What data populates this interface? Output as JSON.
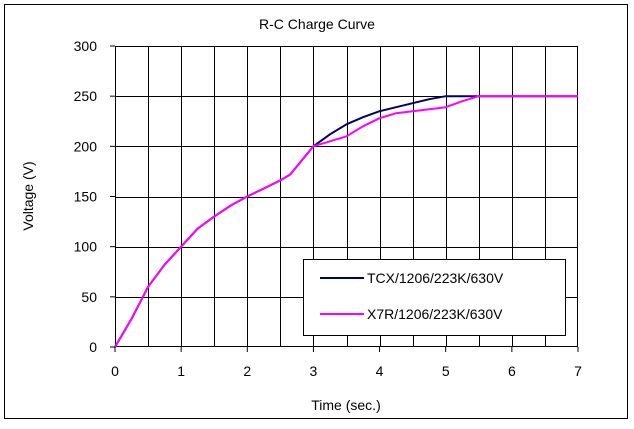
{
  "chart_data": {
    "type": "line",
    "title": "R-C Charge Curve",
    "xlabel": "Time (sec.)",
    "ylabel": "Voltage (V)",
    "xlim": [
      0,
      7
    ],
    "ylim": [
      0,
      300
    ],
    "x_ticks": [
      "0",
      "1",
      "2",
      "3",
      "4",
      "5",
      "6",
      "7"
    ],
    "y_ticks": [
      "0",
      "50",
      "100",
      "150",
      "200",
      "250",
      "300"
    ],
    "grid": true,
    "legend_position": "bottom-right",
    "series": [
      {
        "name": "TCX/1206/223K/630V",
        "color": "#000066",
        "points": [
          [
            0,
            0
          ],
          [
            0.25,
            28
          ],
          [
            0.5,
            60
          ],
          [
            0.75,
            82
          ],
          [
            1,
            100
          ],
          [
            1.25,
            118
          ],
          [
            1.5,
            130
          ],
          [
            1.75,
            141
          ],
          [
            2,
            150
          ],
          [
            2.25,
            158
          ],
          [
            2.5,
            166
          ],
          [
            2.65,
            172
          ],
          [
            2.85,
            188
          ],
          [
            3,
            200
          ],
          [
            3.25,
            212
          ],
          [
            3.5,
            222
          ],
          [
            3.75,
            229
          ],
          [
            4,
            235
          ],
          [
            4.25,
            239
          ],
          [
            4.5,
            243
          ],
          [
            4.75,
            247
          ],
          [
            5,
            250
          ],
          [
            5.25,
            250
          ],
          [
            5.5,
            250
          ],
          [
            6,
            250
          ],
          [
            6.5,
            250
          ],
          [
            7,
            250
          ]
        ]
      },
      {
        "name": "X7R/1206/223K/630V",
        "color": "#ff00ff",
        "points": [
          [
            0,
            0
          ],
          [
            0.25,
            28
          ],
          [
            0.5,
            60
          ],
          [
            0.75,
            82
          ],
          [
            1,
            100
          ],
          [
            1.25,
            118
          ],
          [
            1.5,
            130
          ],
          [
            1.75,
            141
          ],
          [
            2,
            150
          ],
          [
            2.25,
            158
          ],
          [
            2.5,
            166
          ],
          [
            2.65,
            172
          ],
          [
            2.85,
            188
          ],
          [
            3,
            200
          ],
          [
            3.25,
            205
          ],
          [
            3.5,
            210
          ],
          [
            3.75,
            220
          ],
          [
            4,
            228
          ],
          [
            4.25,
            233
          ],
          [
            4.5,
            235
          ],
          [
            4.75,
            237
          ],
          [
            5,
            239
          ],
          [
            5.25,
            245
          ],
          [
            5.5,
            250
          ],
          [
            6,
            250
          ],
          [
            6.5,
            250
          ],
          [
            7,
            250
          ]
        ]
      }
    ]
  }
}
